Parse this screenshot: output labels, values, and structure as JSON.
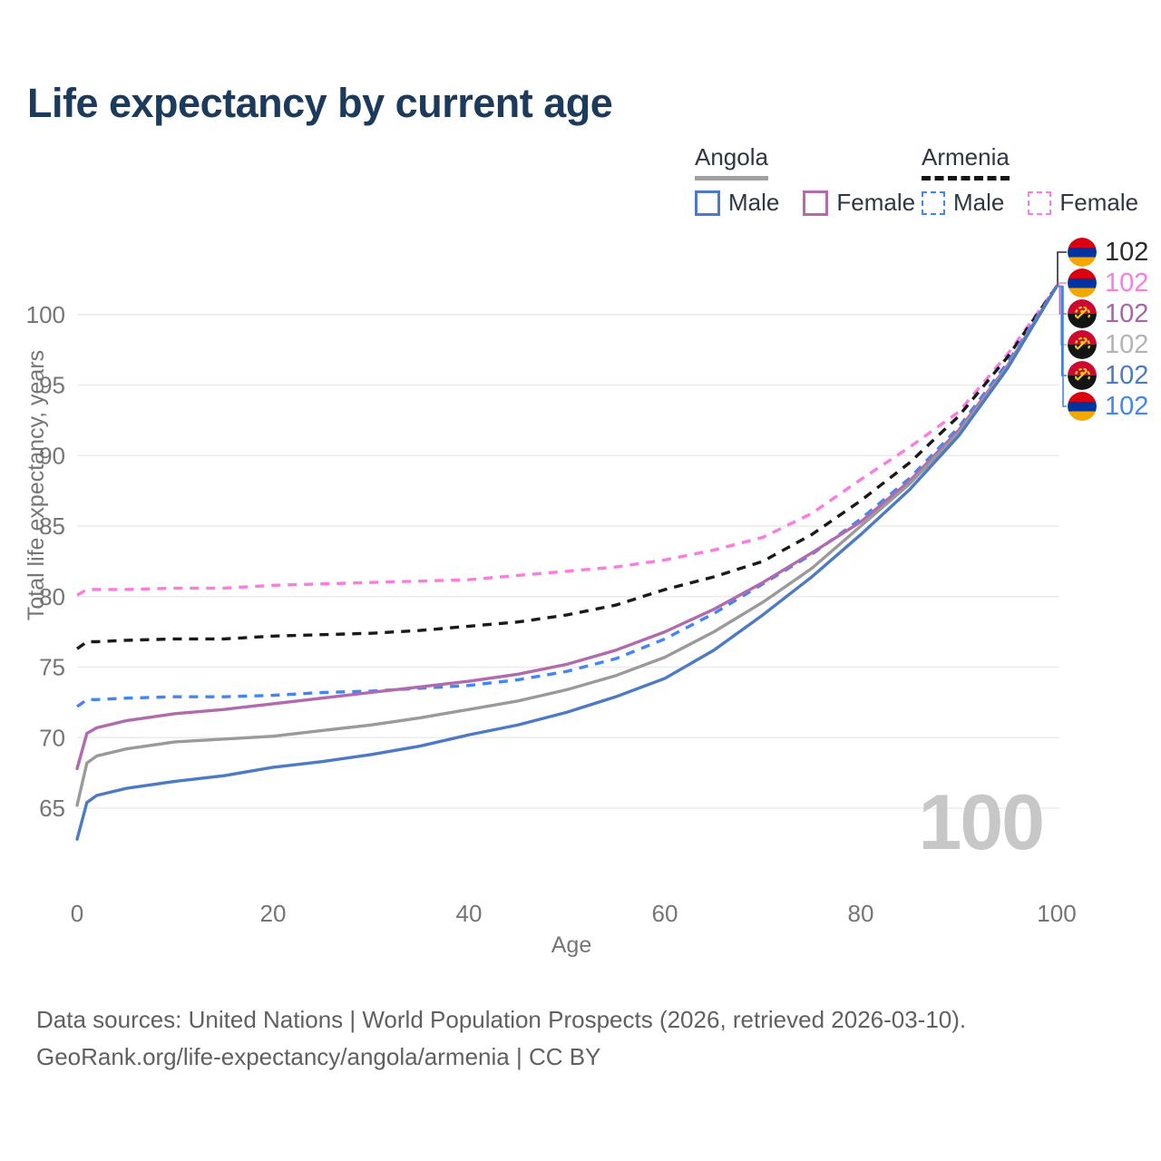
{
  "title": "Life expectancy by current age",
  "legend": {
    "groups": [
      {
        "name": "Angola",
        "line_style": "solid",
        "underline_color": "#a0a0a0",
        "items": [
          {
            "label": "Male",
            "color": "#4d7ac4",
            "dashed": false
          },
          {
            "label": "Female",
            "color": "#b06aad",
            "dashed": false
          }
        ]
      },
      {
        "name": "Armenia",
        "line_style": "dashed",
        "underline_color": "#141414",
        "items": [
          {
            "label": "Male",
            "color": "#4285f4",
            "dashed": true
          },
          {
            "label": "Female",
            "color": "#fb7ce1",
            "dashed": true
          }
        ]
      }
    ]
  },
  "chart_data": {
    "type": "line",
    "title": "Life expectancy by current age",
    "xlabel": "Age",
    "ylabel": "Total life expectancy, years",
    "xlim": [
      0,
      100
    ],
    "ylim": [
      62,
      103
    ],
    "x_ticks": [
      0,
      20,
      40,
      60,
      80,
      100
    ],
    "y_ticks": [
      65,
      70,
      75,
      80,
      85,
      90,
      95,
      100
    ],
    "grid": "horizontal-only",
    "legend_position": "top-right",
    "watermark_current_age": "100",
    "x": [
      0,
      1,
      2,
      5,
      10,
      15,
      20,
      25,
      30,
      35,
      40,
      45,
      50,
      55,
      60,
      65,
      70,
      75,
      80,
      85,
      90,
      95,
      100
    ],
    "series": [
      {
        "name": "Armenia Female",
        "country": "Armenia",
        "sex": "Female",
        "color": "#fb7ce1",
        "dashed": true,
        "values": [
          80.1,
          80.5,
          80.5,
          80.5,
          80.6,
          80.6,
          80.8,
          80.9,
          81.0,
          81.1,
          81.2,
          81.5,
          81.8,
          82.1,
          82.6,
          83.3,
          84.2,
          85.9,
          88.3,
          90.6,
          93.1,
          97.2,
          102
        ]
      },
      {
        "name": "Armenia",
        "country": "Armenia",
        "sex": "Both",
        "color": "#1a1a1a",
        "dashed": true,
        "values": [
          76.3,
          76.8,
          76.8,
          76.9,
          77.0,
          77.0,
          77.2,
          77.3,
          77.4,
          77.6,
          77.9,
          78.2,
          78.7,
          79.4,
          80.5,
          81.4,
          82.5,
          84.4,
          86.8,
          89.5,
          92.8,
          97.0,
          102
        ]
      },
      {
        "name": "Armenia Male",
        "country": "Armenia",
        "sex": "Male",
        "color": "#4285f4",
        "dashed": true,
        "values": [
          72.2,
          72.7,
          72.7,
          72.8,
          72.9,
          72.9,
          73.0,
          73.2,
          73.3,
          73.5,
          73.7,
          74.1,
          74.7,
          75.6,
          77.0,
          78.8,
          80.9,
          83.0,
          85.5,
          88.4,
          92.0,
          96.6,
          102
        ]
      },
      {
        "name": "Angola Female",
        "country": "Angola",
        "sex": "Female",
        "color": "#b06aad",
        "dashed": false,
        "values": [
          67.8,
          70.3,
          70.7,
          71.2,
          71.7,
          72.0,
          72.4,
          72.8,
          73.2,
          73.6,
          74.0,
          74.5,
          75.2,
          76.2,
          77.5,
          79.1,
          81.0,
          83.1,
          85.3,
          88.2,
          91.8,
          96.4,
          102
        ]
      },
      {
        "name": "Angola",
        "country": "Angola",
        "sex": "Both",
        "color": "#9a9a9a",
        "dashed": false,
        "values": [
          65.2,
          68.2,
          68.7,
          69.2,
          69.7,
          69.9,
          70.1,
          70.5,
          70.9,
          71.4,
          72.0,
          72.6,
          73.4,
          74.4,
          75.7,
          77.5,
          79.6,
          82.0,
          85.0,
          88.0,
          91.6,
          96.3,
          102
        ]
      },
      {
        "name": "Angola Male",
        "country": "Angola",
        "sex": "Male",
        "color": "#4d7ac4",
        "dashed": false,
        "values": [
          62.8,
          65.4,
          65.9,
          66.4,
          66.9,
          67.3,
          67.9,
          68.3,
          68.8,
          69.4,
          70.2,
          70.9,
          71.8,
          72.9,
          74.2,
          76.2,
          78.7,
          81.4,
          84.4,
          87.6,
          91.4,
          96.2,
          102
        ]
      }
    ],
    "end_labels": [
      {
        "flag": "armenia",
        "value": "102",
        "color": "#2b2b2b"
      },
      {
        "flag": "armenia",
        "value": "102",
        "color": "#fb7ce1"
      },
      {
        "flag": "angola",
        "value": "102",
        "color": "#a965a9"
      },
      {
        "flag": "angola",
        "value": "102",
        "color": "#b3b3b3"
      },
      {
        "flag": "angola",
        "value": "102",
        "color": "#4d7ac4"
      },
      {
        "flag": "armenia",
        "value": "102",
        "color": "#4285f4"
      }
    ]
  },
  "footer": {
    "line1": "Data sources: United Nations | World Population Prospects (2026, retrieved 2026-03-10).",
    "line2": "GeoRank.org/life-expectancy/angola/armenia | CC BY"
  }
}
